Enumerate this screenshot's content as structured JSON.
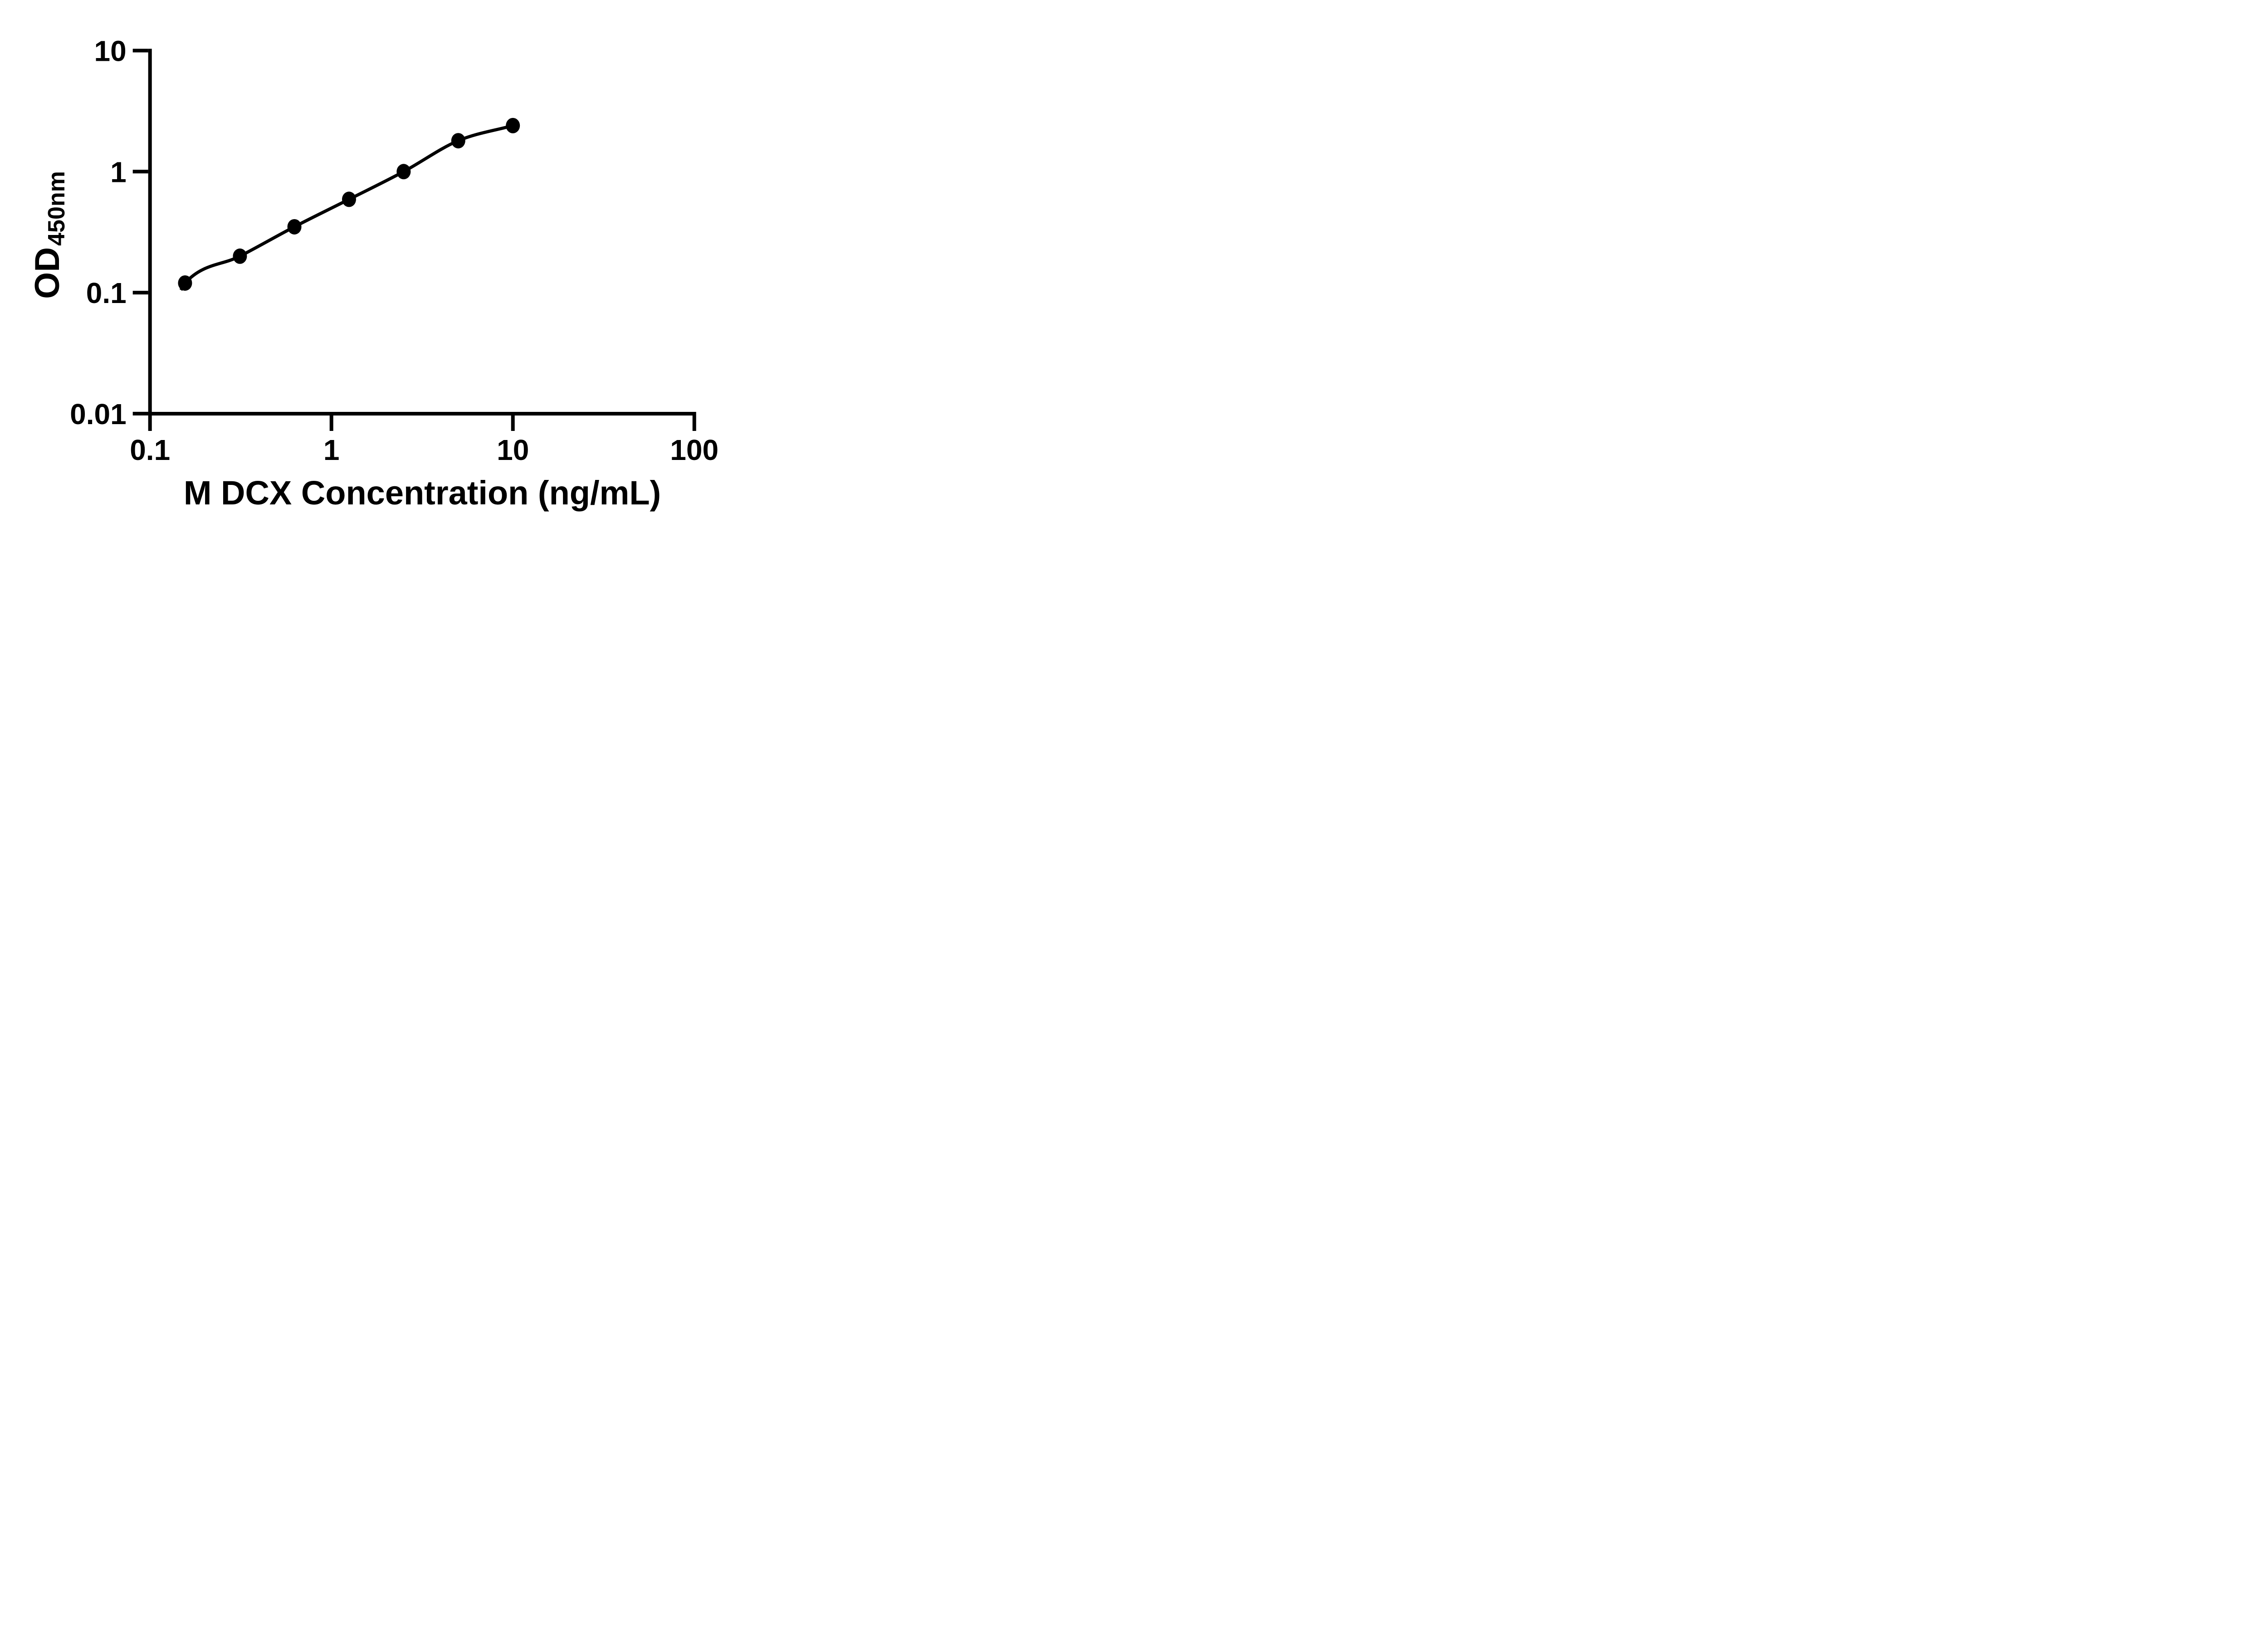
{
  "figure": {
    "background": "#ffffff",
    "foreground": "#000000"
  },
  "chart_data": {
    "type": "scatter",
    "title": "",
    "xlabel": "M DCX Concentration (ng/mL)",
    "ylabel_main": "OD",
    "ylabel_sub": "450nm",
    "x_scale": "log",
    "y_scale": "log",
    "xlim": [
      0.1,
      100
    ],
    "ylim": [
      0.01,
      10
    ],
    "grid": false,
    "legend": false,
    "marker": {
      "shape": "filled-circle",
      "color": "#000000"
    },
    "line": {
      "style": "fitted-curve",
      "color": "#000000"
    },
    "x_ticks": [
      {
        "value": 0.1,
        "label": "0.1"
      },
      {
        "value": 1,
        "label": "1"
      },
      {
        "value": 10,
        "label": "10"
      },
      {
        "value": 100,
        "label": "100"
      }
    ],
    "y_ticks": [
      {
        "value": 10,
        "label": "10"
      },
      {
        "value": 1,
        "label": "1"
      },
      {
        "value": 0.1,
        "label": "0.1"
      },
      {
        "value": 0.01,
        "label": "0.01"
      }
    ],
    "fit_curve_start": {
      "x": 0.148,
      "od": 0.105
    },
    "points": [
      {
        "x": 0.156,
        "od": 0.12
      },
      {
        "x": 0.313,
        "od": 0.2
      },
      {
        "x": 0.625,
        "od": 0.35
      },
      {
        "x": 1.25,
        "od": 0.59
      },
      {
        "x": 2.5,
        "od": 1.0
      },
      {
        "x": 5,
        "od": 1.8
      },
      {
        "x": 10,
        "od": 2.4
      }
    ]
  }
}
